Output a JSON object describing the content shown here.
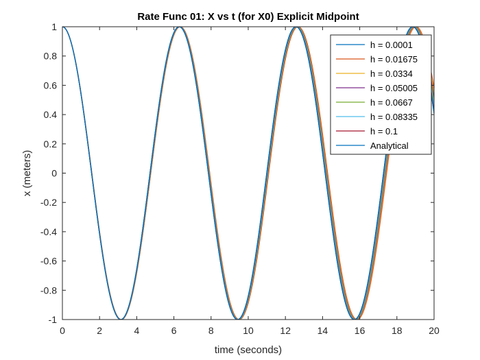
{
  "chart_data": {
    "type": "line",
    "title": "Rate Func 01: X vs t (for X0) Explicit Midpoint",
    "xlabel": "time (seconds)",
    "ylabel": "x (meters)",
    "xlim": [
      0,
      20
    ],
    "ylim": [
      -1,
      1
    ],
    "xticks": [
      "0",
      "2",
      "4",
      "6",
      "8",
      "10",
      "12",
      "14",
      "16",
      "18",
      "20"
    ],
    "yticks": [
      "-1",
      "-0.8",
      "-0.6",
      "-0.4",
      "-0.2",
      "0",
      "0.2",
      "0.4",
      "0.6",
      "0.8",
      "1"
    ],
    "grid": false,
    "legend_position": "top-right",
    "x_start": 0,
    "function": "x = cos(t)",
    "series": [
      {
        "name": "h = 0.0001",
        "color": "#0072BD",
        "x_end": 20,
        "phase_lag": 0.0
      },
      {
        "name": "h = 0.01675",
        "color": "#D95319",
        "x_end": 20,
        "phase_lag": 0.06
      },
      {
        "name": "h = 0.0334",
        "color": "#EDB120",
        "x_end": 20,
        "phase_lag": 0.045
      },
      {
        "name": "h = 0.05005",
        "color": "#7E2F8E",
        "x_end": 20,
        "phase_lag": 0.035
      },
      {
        "name": "h = 0.0667",
        "color": "#77AC30",
        "x_end": 20,
        "phase_lag": 0.025
      },
      {
        "name": "h = 0.08335",
        "color": "#4DBEEE",
        "x_end": 20,
        "phase_lag": 0.015
      },
      {
        "name": "h = 0.1",
        "color": "#A2142F",
        "x_end": 20,
        "phase_lag": 0.005
      },
      {
        "name": "Analytical",
        "color": "#0072BD",
        "x_end": 20,
        "phase_lag": 0.0
      }
    ]
  }
}
